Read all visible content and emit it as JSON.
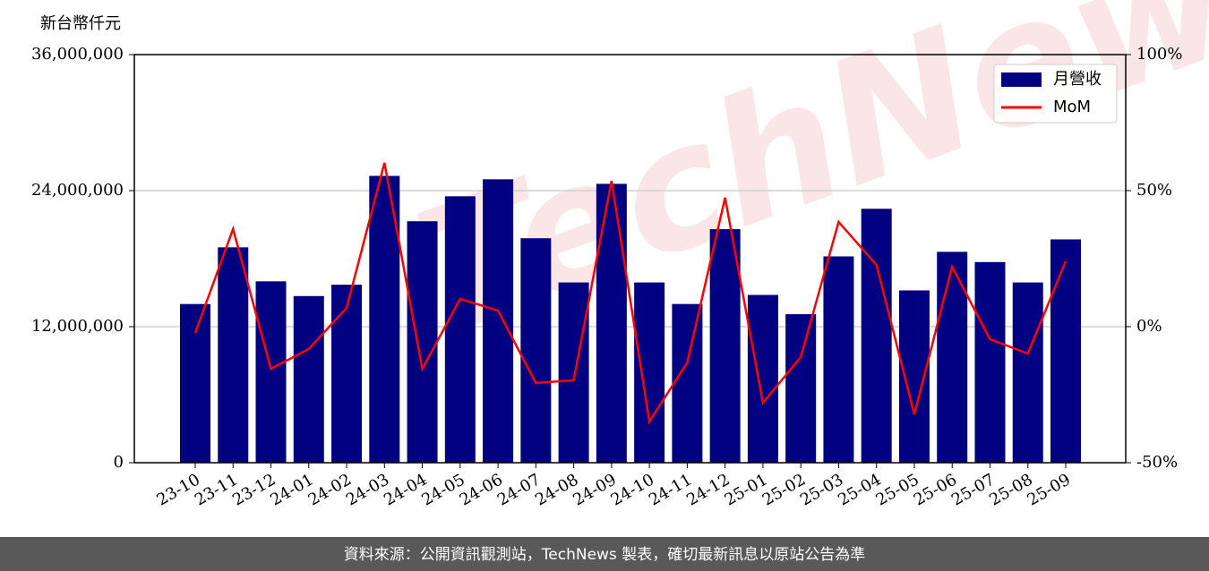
{
  "chart_data": {
    "type": "bar",
    "y_label": "新台幣仟元",
    "watermark": "TechNews",
    "categories": [
      "23-10",
      "23-11",
      "23-12",
      "24-01",
      "24-02",
      "24-03",
      "24-04",
      "24-05",
      "24-06",
      "24-07",
      "24-08",
      "24-09",
      "24-10",
      "24-11",
      "24-12",
      "25-01",
      "25-02",
      "25-03",
      "25-04",
      "25-05",
      "25-06",
      "25-07",
      "25-08",
      "25-09"
    ],
    "series": [
      {
        "name": "月營收",
        "type": "bar",
        "color": "#000080",
        "values": [
          14000000,
          19000000,
          16000000,
          14700000,
          15700000,
          25300000,
          21300000,
          23500000,
          25000000,
          19800000,
          15900000,
          24600000,
          15900000,
          14000000,
          20600000,
          14800000,
          13100000,
          18200000,
          22400000,
          15200000,
          18600000,
          17700000,
          15900000,
          19700000
        ]
      },
      {
        "name": "MoM",
        "type": "line",
        "axis": "y2",
        "color": "#ff0000",
        "values": [
          -2.3,
          35.9,
          -15.5,
          -8.2,
          6.9,
          60.2,
          -15.5,
          10.2,
          5.9,
          -20.7,
          -19.7,
          53.6,
          -34.9,
          -13.2,
          47.4,
          -28.0,
          -11.2,
          38.5,
          22.7,
          -32.2,
          22.0,
          -4.6,
          -9.9,
          24.0
        ]
      }
    ],
    "ylim": [
      0,
      36000000
    ],
    "yticks": [
      0,
      {
        "value": 12000000,
        "label": "12,000,000"
      },
      {
        "value": 24000000,
        "label": "24,000,000"
      },
      {
        "value": 36000000,
        "label": "36,000,000"
      }
    ],
    "y2lim": [
      -50,
      100
    ],
    "y2ticks": [
      {
        "value": -50,
        "label": "-50%"
      },
      {
        "value": 0,
        "label": "0%"
      },
      {
        "value": 50,
        "label": "50%"
      },
      {
        "value": 100,
        "label": "100%"
      }
    ],
    "grid": true,
    "legend": "upper right"
  },
  "footer": "資料來源：公開資訊觀測站，TechNews 製表，確切最新訊息以原站公告為準"
}
